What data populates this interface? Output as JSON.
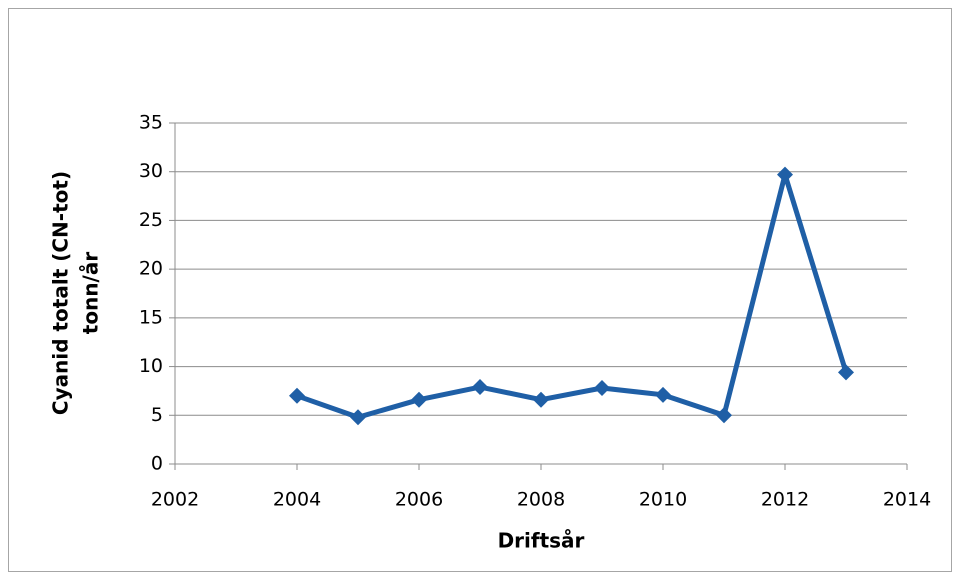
{
  "chart_data": {
    "type": "line",
    "x": [
      2004,
      2005,
      2006,
      2007,
      2008,
      2009,
      2010,
      2011,
      2012,
      2013
    ],
    "series": [
      {
        "name": "Cyanid totalt (CN-tot)",
        "color": "#1f5fa6",
        "values": [
          7.0,
          4.8,
          6.6,
          7.9,
          6.6,
          7.8,
          7.1,
          5.0,
          29.7,
          9.4
        ]
      }
    ],
    "xlim": [
      2002,
      2014
    ],
    "xticks": [
      2002,
      2004,
      2006,
      2008,
      2010,
      2012,
      2014
    ],
    "ylim": [
      0,
      35
    ],
    "yticks": [
      0,
      5,
      10,
      15,
      20,
      25,
      30,
      35
    ],
    "xlabel": "Driftsår",
    "ylabel": [
      "Cyanid totalt (CN-tot)",
      "tonn/år"
    ],
    "grid": true
  }
}
